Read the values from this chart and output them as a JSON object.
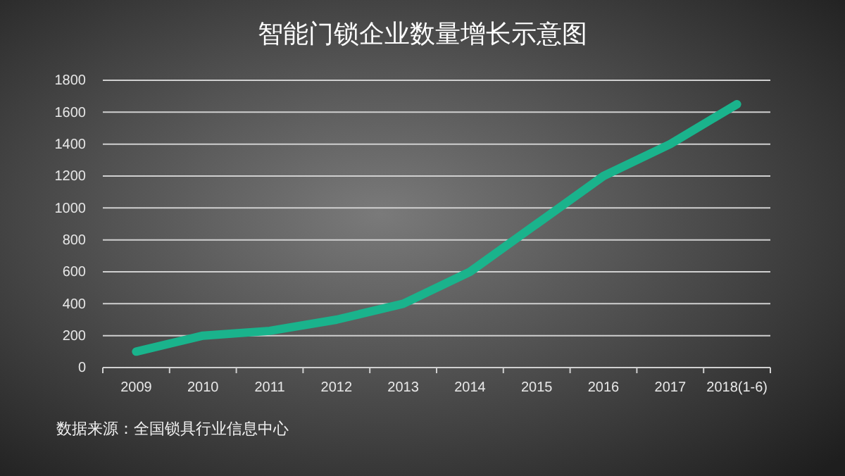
{
  "chart_data": {
    "type": "line",
    "title": "智能门锁企业数量增长示意图",
    "categories": [
      "2009",
      "2010",
      "2011",
      "2012",
      "2013",
      "2014",
      "2015",
      "2016",
      "2017",
      "2018(1-6)"
    ],
    "series": [
      {
        "color": "#1ab38c",
        "values": [
          100,
          200,
          230,
          300,
          400,
          600,
          900,
          1200,
          1400,
          1650
        ]
      }
    ],
    "ylim": [
      0,
      1800
    ],
    "yticks": [
      0,
      200,
      400,
      600,
      800,
      1000,
      1200,
      1400,
      1600,
      1800
    ],
    "grid": "y",
    "marker": "none",
    "line_style": "solid",
    "annotations": [
      "数据来源：全国锁具行业信息中心"
    ]
  }
}
